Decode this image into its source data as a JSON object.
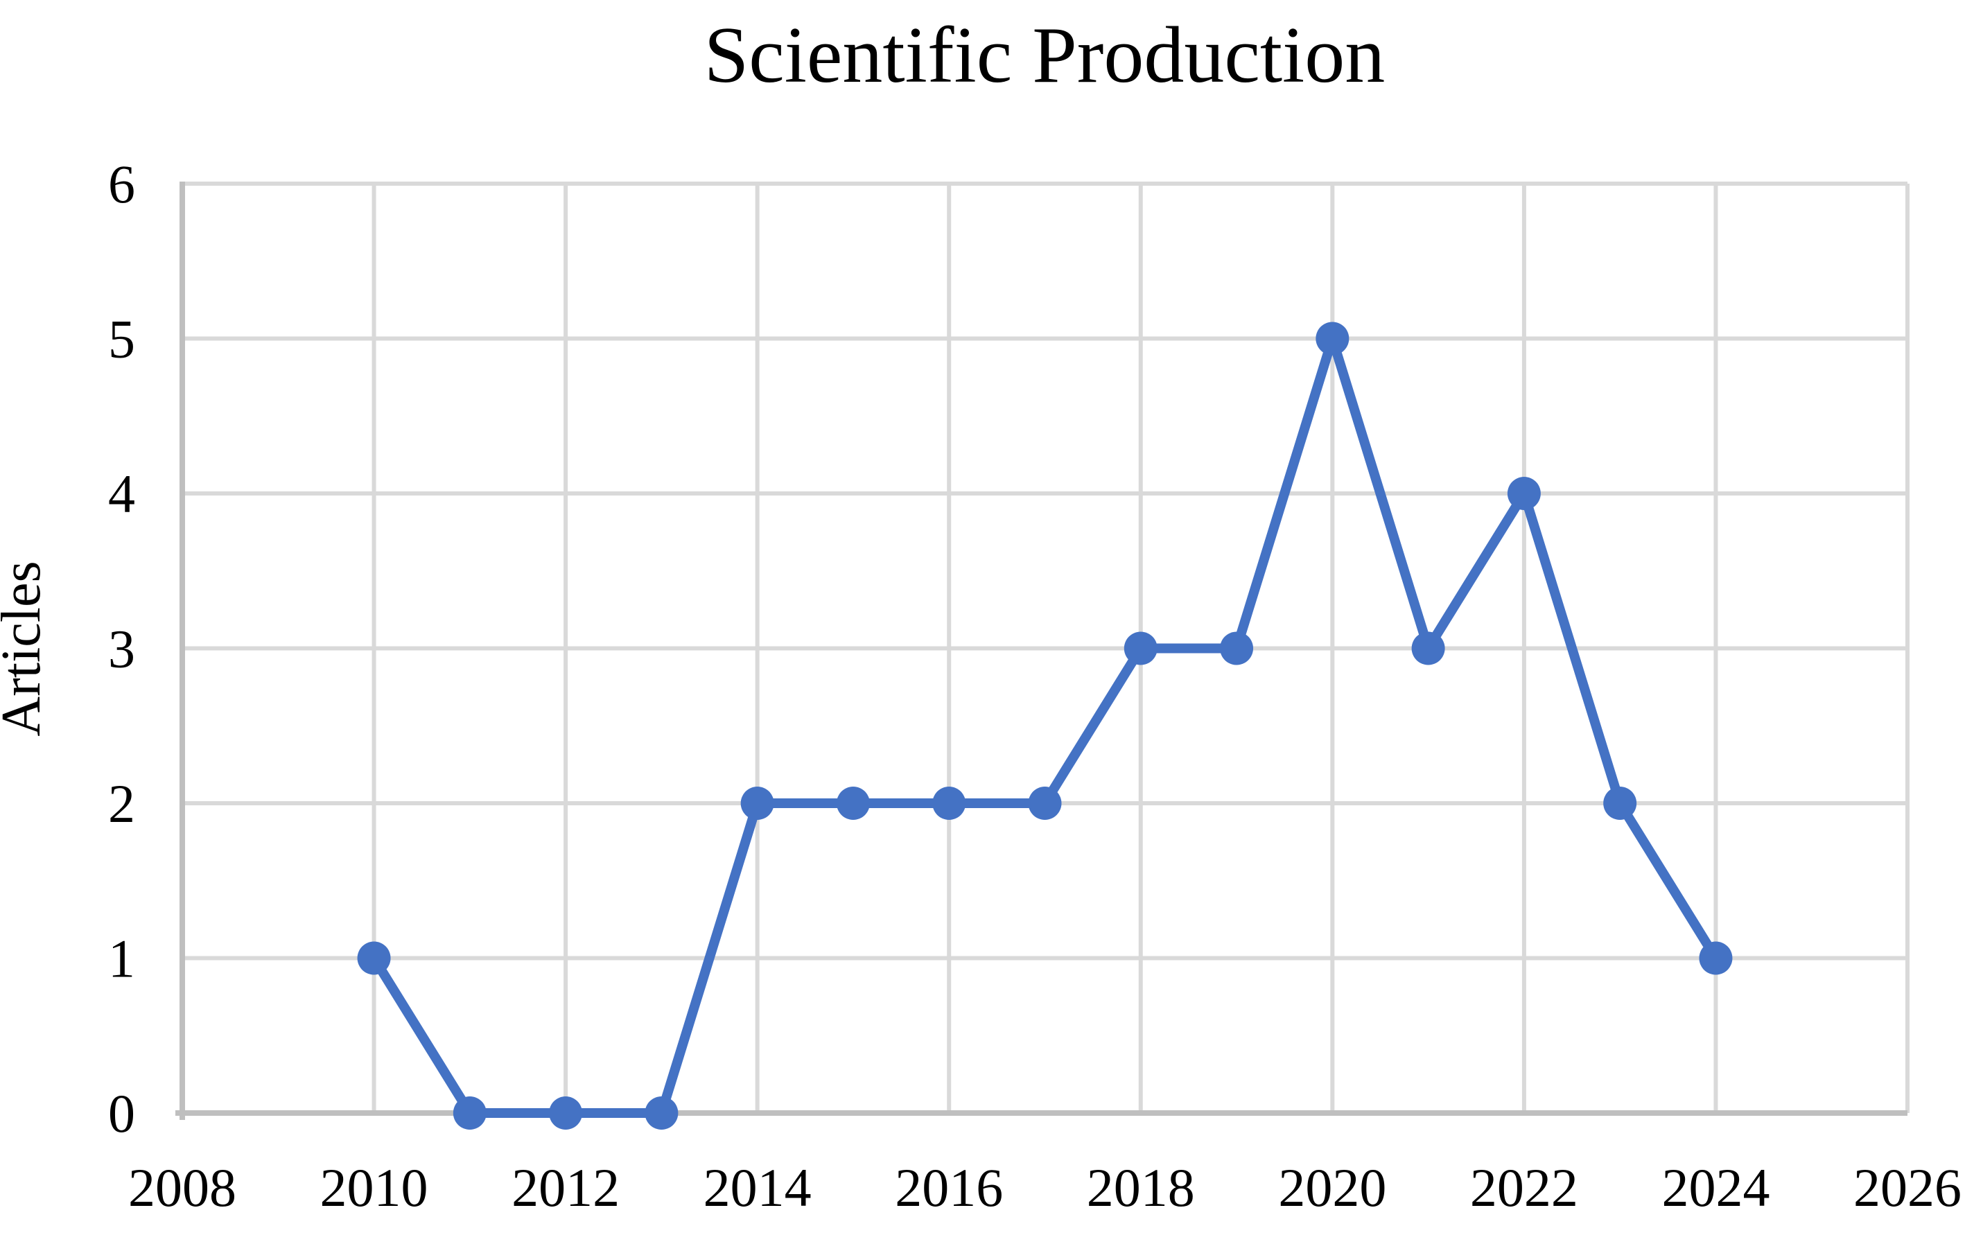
{
  "chart_data": {
    "type": "line",
    "title": "Scientific Production",
    "xlabel": "",
    "ylabel": "Articles",
    "x": [
      2010,
      2011,
      2012,
      2013,
      2014,
      2015,
      2016,
      2017,
      2018,
      2019,
      2020,
      2021,
      2022,
      2023,
      2024
    ],
    "values": [
      1,
      0,
      0,
      0,
      2,
      2,
      2,
      2,
      3,
      3,
      5,
      3,
      4,
      2,
      1
    ],
    "series_count": 1,
    "xlim": [
      2008,
      2026
    ],
    "ylim": [
      0,
      6
    ],
    "x_ticks": [
      2008,
      2010,
      2012,
      2014,
      2016,
      2018,
      2020,
      2022,
      2024,
      2026
    ],
    "y_ticks": [
      0,
      1,
      2,
      3,
      4,
      5,
      6
    ],
    "grid": true,
    "legend": false,
    "colors": {
      "series": "#4472C4",
      "gridline": "#D9D9D9",
      "axis": "#BFBFBF",
      "text": "#000000",
      "background": "#FFFFFF"
    }
  }
}
